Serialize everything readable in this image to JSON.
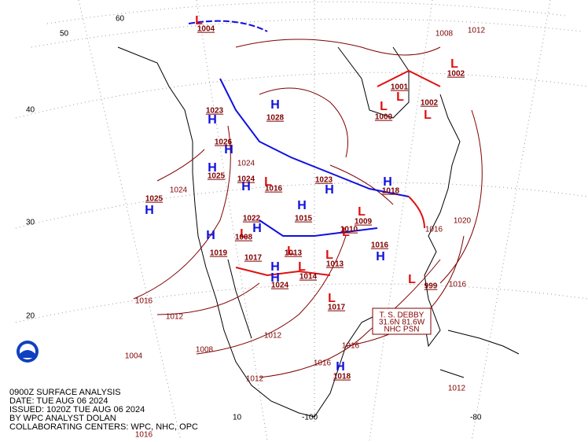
{
  "header": {
    "caption": [
      "0900Z SURFACE ANALYSIS",
      "DATE: TUE AUG 06 2024",
      "ISSUED: 1020Z TUE AUG 06 2024",
      "BY WPC ANALYST DOLAN",
      "COLLABORATING CENTERS: WPC, NHC, OPC"
    ]
  },
  "grid_labels": {
    "lat": [
      "60",
      "50",
      "40",
      "30",
      "20"
    ],
    "lon": [
      "10",
      "-100",
      "-80"
    ]
  },
  "high_symbol": "H",
  "low_symbol": "L",
  "highs": [
    "1025",
    "1023",
    "1028",
    "1026",
    "1025",
    "1024",
    "1023",
    "1018",
    "1022",
    "1015",
    "1019",
    "1017",
    "1024",
    "1016",
    "1018"
  ],
  "lows": [
    "1004",
    "1002",
    "1001",
    "1002",
    "1000",
    "1016",
    "1009",
    "1013",
    "1017",
    "999",
    "1013",
    "1014",
    "1010",
    "1008"
  ],
  "storm": {
    "lines": [
      "T. S. DEBBY",
      "31.6N 81.6W",
      "NHC PSN"
    ]
  },
  "isobar_labels": [
    "1016",
    "1012",
    "1008",
    "1004",
    "1012",
    "1012",
    "1016",
    "1016",
    "1016",
    "1020",
    "1016",
    "1012",
    "1012",
    "1008",
    "1024",
    "1024",
    "1016"
  ]
}
